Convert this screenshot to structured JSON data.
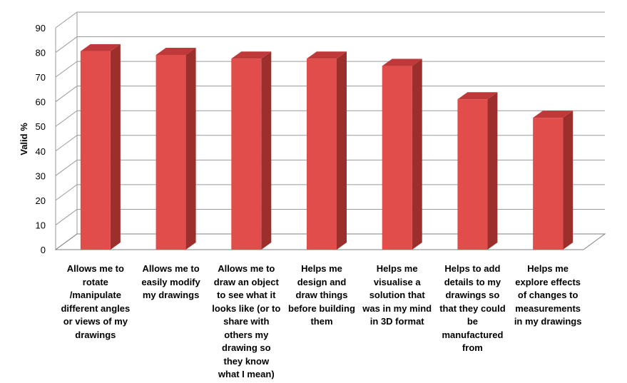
{
  "chart_data": {
    "type": "bar",
    "style": "3d-column",
    "ylabel": "Valid %",
    "xlabel": "",
    "ylim": [
      0,
      90
    ],
    "yticks": [
      0,
      10,
      20,
      30,
      40,
      50,
      60,
      70,
      80,
      90
    ],
    "grid": true,
    "legend": "none",
    "categories": [
      "Allows me to rotate /manipulate different angles or views of my drawings",
      "Allows me to easily modify my drawings",
      "Allows me to draw an object to see what it looks like (or to share with others my drawing so they know what I mean)",
      "Helps me design and draw things before building them",
      "Helps me visualise a solution that was in my mind in 3D format",
      "Helps to add details to my drawings so that they could be manufactured from",
      "Helps me explore effects of changes to measurements in my drawings"
    ],
    "category_lines": [
      [
        "Allows me to",
        "rotate",
        "/manipulate",
        "different angles",
        "or views of my",
        "drawings"
      ],
      [
        "Allows me to",
        "easily modify",
        "my drawings"
      ],
      [
        "Allows me to",
        "draw an object",
        "to see what it",
        "looks like (or to",
        "share with",
        "others my",
        "drawing so",
        "they know",
        "what I mean)"
      ],
      [
        "Helps me",
        "design and",
        "draw things",
        "before building",
        "them"
      ],
      [
        "Helps me",
        "visualise a",
        "solution that",
        "was in my mind",
        "in 3D format"
      ],
      [
        "Helps to add",
        "details to my",
        "drawings so",
        "that they could",
        "be",
        "manufactured",
        "from"
      ],
      [
        "Helps me",
        "explore effects",
        "of changes to",
        "measurements",
        "in my drawings"
      ]
    ],
    "values": [
      80.5,
      79,
      77.5,
      77.5,
      74.5,
      61,
      53.5
    ]
  },
  "colors": {
    "bar_front": "#e04d4b",
    "bar_side": "#9c2e2c",
    "bar_top": "#c0393a",
    "grid": "#9a9a9a",
    "floor": "#808080"
  }
}
